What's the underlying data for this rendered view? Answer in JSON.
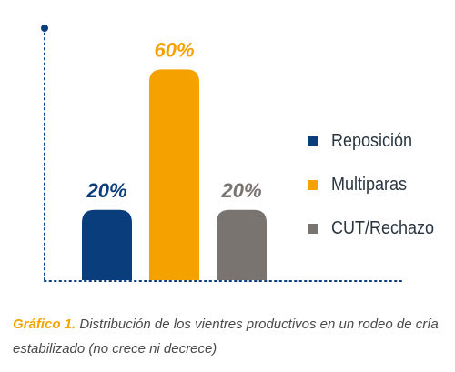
{
  "chart_data": {
    "type": "bar",
    "categories": [
      "Reposición",
      "Multiparas",
      "CUT/Rechazo"
    ],
    "values": [
      20,
      60,
      20
    ],
    "value_labels": [
      "20%",
      "60%",
      "20%"
    ],
    "colors": [
      "#0a3d7c",
      "#f5a200",
      "#797470"
    ],
    "label_colors": [
      "#0a3d7c",
      "#f5a200",
      "#797470"
    ],
    "axis_color": "#0a3d7c",
    "ylim": [
      0,
      72
    ],
    "grid": false,
    "legend_position": "right",
    "title": "",
    "xlabel": "",
    "ylabel": ""
  },
  "legend": {
    "items": [
      {
        "label": "Reposición",
        "color": "#0a3d7c"
      },
      {
        "label": "Multiparas",
        "color": "#f5a200"
      },
      {
        "label": "CUT/Rechazo",
        "color": "#797470"
      }
    ]
  },
  "caption": {
    "lead": "Gráfico 1.",
    "text": " Distribución de los vientres productivos en un rodeo de cría estabilizado (no crece ni decrece)"
  }
}
